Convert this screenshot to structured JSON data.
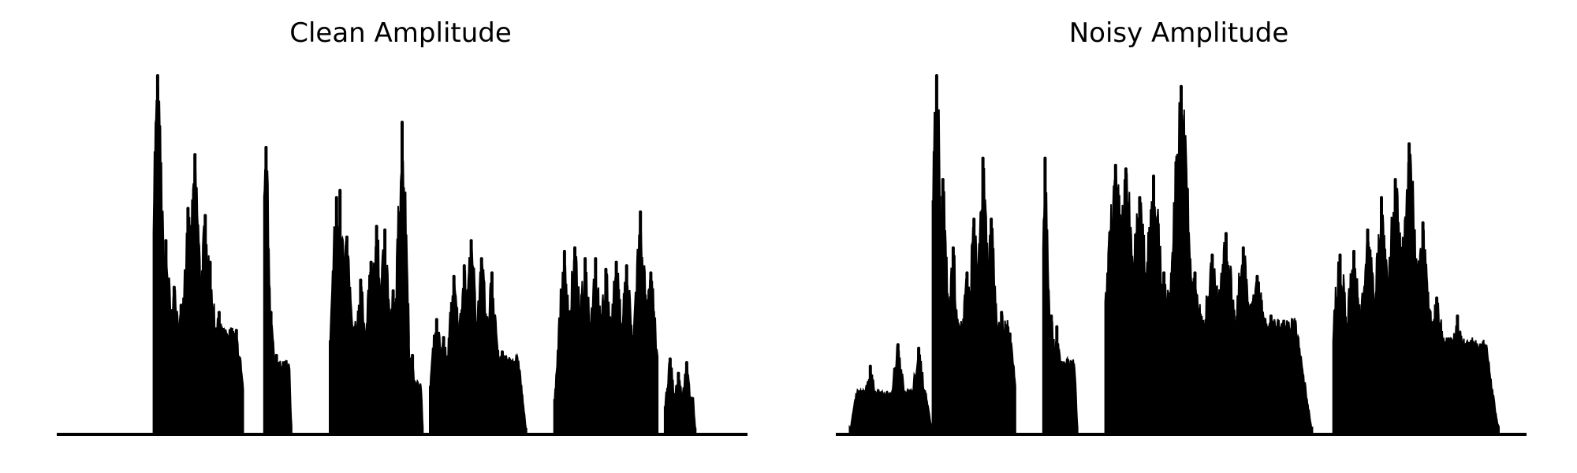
{
  "chart_data": [
    {
      "type": "area",
      "title": "Clean Amplitude",
      "xlabel": "",
      "ylabel": "",
      "axes_visible": false,
      "grid": false,
      "color": "#000000",
      "ylim": [
        0,
        1.0
      ],
      "segments": [
        {
          "x": [
            0.14,
            0.27
          ],
          "peaks": [
            [
              0.146,
              1.0
            ],
            [
              0.152,
              0.59
            ],
            [
              0.158,
              0.54
            ],
            [
              0.17,
              0.41
            ],
            [
              0.18,
              0.36
            ],
            [
              0.19,
              0.63
            ],
            [
              0.2,
              0.78
            ],
            [
              0.215,
              0.61
            ],
            [
              0.222,
              0.48
            ],
            [
              0.235,
              0.34
            ],
            [
              0.26,
              0.29
            ]
          ]
        },
        {
          "x": [
            0.3,
            0.34
          ],
          "peaks": [
            [
              0.303,
              0.8
            ],
            [
              0.31,
              0.34
            ],
            [
              0.318,
              0.22
            ],
            [
              0.33,
              0.15
            ]
          ]
        },
        {
          "x": [
            0.395,
            0.51
          ],
          "peaks": [
            [
              0.405,
              0.66
            ],
            [
              0.41,
              0.68
            ],
            [
              0.42,
              0.55
            ],
            [
              0.44,
              0.43
            ],
            [
              0.455,
              0.48
            ],
            [
              0.463,
              0.58
            ],
            [
              0.475,
              0.57
            ],
            [
              0.487,
              0.4
            ],
            [
              0.5,
              0.87
            ]
          ]
        },
        {
          "x": [
            0.5,
            0.53
          ],
          "peaks": [
            [
              0.507,
              0.33
            ],
            [
              0.515,
              0.22
            ]
          ]
        },
        {
          "x": [
            0.54,
            0.68
          ],
          "peaks": [
            [
              0.55,
              0.32
            ],
            [
              0.56,
              0.27
            ],
            [
              0.575,
              0.44
            ],
            [
              0.59,
              0.47
            ],
            [
              0.6,
              0.54
            ],
            [
              0.615,
              0.49
            ],
            [
              0.63,
              0.45
            ],
            [
              0.645,
              0.23
            ]
          ]
        },
        {
          "x": [
            0.72,
            0.87
          ],
          "peaks": [
            [
              0.735,
              0.51
            ],
            [
              0.75,
              0.52
            ],
            [
              0.765,
              0.49
            ],
            [
              0.78,
              0.49
            ],
            [
              0.795,
              0.46
            ],
            [
              0.81,
              0.48
            ],
            [
              0.825,
              0.47
            ],
            [
              0.845,
              0.62
            ],
            [
              0.86,
              0.45
            ]
          ]
        },
        {
          "x": [
            0.88,
            0.925
          ],
          "peaks": [
            [
              0.888,
              0.21
            ],
            [
              0.9,
              0.17
            ],
            [
              0.912,
              0.2
            ]
          ]
        }
      ]
    },
    {
      "type": "area",
      "title": "Noisy Amplitude",
      "xlabel": "",
      "ylabel": "",
      "axes_visible": false,
      "grid": false,
      "color": "#000000",
      "ylim": [
        0,
        1.0
      ],
      "segments": [
        {
          "x": [
            0.02,
            0.14
          ],
          "peaks": [
            [
              0.05,
              0.19
            ],
            [
              0.09,
              0.25
            ],
            [
              0.12,
              0.24
            ]
          ]
        },
        {
          "x": [
            0.14,
            0.26
          ],
          "peaks": [
            [
              0.146,
              1.0
            ],
            [
              0.155,
              0.71
            ],
            [
              0.17,
              0.52
            ],
            [
              0.19,
              0.45
            ],
            [
              0.2,
              0.6
            ],
            [
              0.213,
              0.77
            ],
            [
              0.225,
              0.6
            ],
            [
              0.24,
              0.34
            ],
            [
              0.252,
              0.28
            ]
          ]
        },
        {
          "x": [
            0.3,
            0.35
          ],
          "peaks": [
            [
              0.303,
              0.77
            ],
            [
              0.312,
              0.33
            ],
            [
              0.32,
              0.3
            ],
            [
              0.335,
              0.15
            ]
          ]
        },
        {
          "x": [
            0.39,
            0.69
          ],
          "peaks": [
            [
              0.405,
              0.75
            ],
            [
              0.42,
              0.74
            ],
            [
              0.44,
              0.66
            ],
            [
              0.46,
              0.72
            ],
            [
              0.475,
              0.45
            ],
            [
              0.5,
              0.97
            ],
            [
              0.52,
              0.45
            ],
            [
              0.545,
              0.5
            ],
            [
              0.565,
              0.56
            ],
            [
              0.59,
              0.52
            ],
            [
              0.61,
              0.44
            ],
            [
              0.63,
              0.33
            ]
          ]
        },
        {
          "x": [
            0.72,
            0.96
          ],
          "peaks": [
            [
              0.73,
              0.5
            ],
            [
              0.75,
              0.51
            ],
            [
              0.77,
              0.57
            ],
            [
              0.79,
              0.66
            ],
            [
              0.81,
              0.71
            ],
            [
              0.83,
              0.81
            ],
            [
              0.85,
              0.59
            ],
            [
              0.87,
              0.38
            ],
            [
              0.9,
              0.33
            ],
            [
              0.92,
              0.22
            ],
            [
              0.94,
              0.12
            ]
          ]
        }
      ]
    }
  ]
}
